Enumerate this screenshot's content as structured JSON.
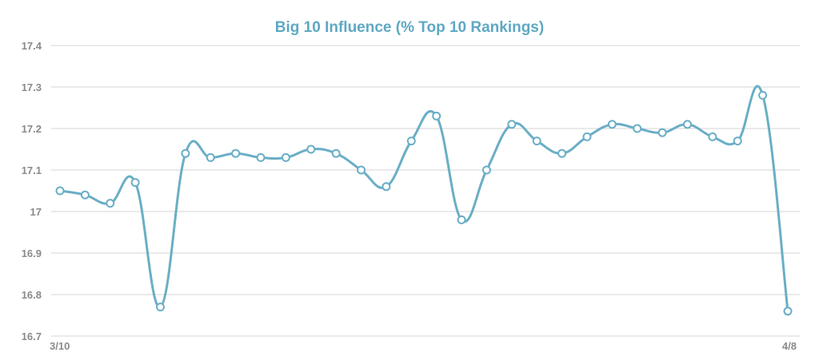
{
  "chart_data": {
    "type": "line",
    "title": "Big 10 Influence (% Top 10 Rankings)",
    "xlabel": "",
    "ylabel": "",
    "x_tick_labels": [
      "3/10",
      "4/8"
    ],
    "y_ticks": [
      "16.7",
      "16.8",
      "16.9",
      "17",
      "17.1",
      "17.2",
      "17.3",
      "17.4"
    ],
    "ylim": [
      16.7,
      17.4
    ],
    "grid": true,
    "legend": "none",
    "series": [
      {
        "values": [
          17.05,
          17.04,
          17.02,
          17.07,
          16.77,
          17.14,
          17.13,
          17.14,
          17.13,
          17.13,
          17.15,
          17.14,
          17.1,
          17.06,
          17.17,
          17.23,
          16.98,
          17.1,
          17.21,
          17.17,
          17.14,
          17.18,
          17.21,
          17.2,
          17.19,
          17.21,
          17.18,
          17.17,
          17.28,
          16.76
        ]
      }
    ],
    "colors": {
      "line": "#6aaec6",
      "title": "#5fa8c3",
      "grid": "#d4d4d4",
      "tick": "#8a8a8a"
    }
  }
}
